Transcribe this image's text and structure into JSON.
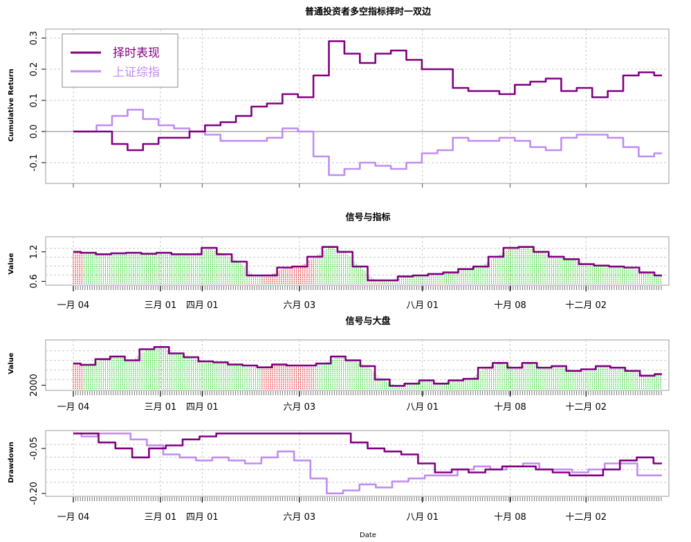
{
  "chart_data": [
    {
      "type": "line",
      "title": "普通投资者多空指标择时一双边",
      "ylabel": "Cumulative Return",
      "ylim": [
        -0.16,
        0.32
      ],
      "yticks": [
        "0.3",
        "0.2",
        "0.1",
        "0.0",
        "-0.1"
      ],
      "ytick_values": [
        0.3,
        0.2,
        0.1,
        0.0,
        -0.1
      ],
      "grid": true,
      "legend": "top-left",
      "series": [
        {
          "name": "择时表现",
          "color": "#800080",
          "values": [
            0.0,
            0.0,
            0.0,
            -0.04,
            -0.06,
            -0.04,
            -0.02,
            -0.02,
            0.0,
            0.02,
            0.03,
            0.05,
            0.08,
            0.09,
            0.12,
            0.11,
            0.18,
            0.29,
            0.25,
            0.22,
            0.25,
            0.26,
            0.23,
            0.2,
            0.2,
            0.14,
            0.13,
            0.13,
            0.12,
            0.15,
            0.16,
            0.17,
            0.13,
            0.14,
            0.11,
            0.13,
            0.18,
            0.19,
            0.18
          ]
        },
        {
          "name": "上证综指",
          "color": "#C08CF0",
          "values": [
            0.0,
            0.0,
            0.02,
            0.05,
            0.07,
            0.04,
            0.02,
            0.01,
            0.0,
            -0.01,
            -0.03,
            -0.03,
            -0.03,
            -0.02,
            0.01,
            0.0,
            -0.08,
            -0.14,
            -0.12,
            -0.1,
            -0.11,
            -0.12,
            -0.1,
            -0.07,
            -0.06,
            -0.02,
            -0.03,
            -0.03,
            -0.02,
            -0.03,
            -0.05,
            -0.06,
            -0.02,
            -0.01,
            -0.01,
            -0.02,
            -0.05,
            -0.08,
            -0.07
          ]
        }
      ]
    },
    {
      "type": "line",
      "title": "信号与指标",
      "ylabel": "Value",
      "ylim": [
        0.55,
        1.45
      ],
      "yticks": [
        "1.2",
        "0.6"
      ],
      "ytick_values": [
        1.2,
        0.6
      ],
      "grid": true,
      "signal_colors": {
        "short": "#E8000B",
        "long": "#00CC00"
      },
      "signal_ranges": [
        {
          "signal": "short",
          "from": 0,
          "to": 0.018
        },
        {
          "signal": "long",
          "from": 0.018,
          "to": 0.32
        },
        {
          "signal": "short",
          "from": 0.32,
          "to": 0.41
        },
        {
          "signal": "long",
          "from": 0.41,
          "to": 1.0
        }
      ],
      "values": [
        1.2,
        1.18,
        1.15,
        1.17,
        1.18,
        1.16,
        1.18,
        1.15,
        1.15,
        1.28,
        1.15,
        1.0,
        0.72,
        0.72,
        0.88,
        0.9,
        1.1,
        1.3,
        1.2,
        0.9,
        0.62,
        0.62,
        0.7,
        0.72,
        0.75,
        0.78,
        0.85,
        0.9,
        1.1,
        1.28,
        1.3,
        1.2,
        1.1,
        1.05,
        0.95,
        0.92,
        0.9,
        0.88,
        0.78,
        0.72
      ]
    },
    {
      "type": "line",
      "title": "信号与大盘",
      "ylabel": "Value",
      "ylim": [
        1880,
        3380
      ],
      "yticks": [
        "2000"
      ],
      "ytick_values": [
        2000
      ],
      "grid": true,
      "signal_colors": {
        "short": "#E8000B",
        "long": "#00CC00"
      },
      "signal_ranges": [
        {
          "signal": "short",
          "from": 0,
          "to": 0.018
        },
        {
          "signal": "long",
          "from": 0.018,
          "to": 0.32
        },
        {
          "signal": "short",
          "from": 0.32,
          "to": 0.41
        },
        {
          "signal": "long",
          "from": 0.41,
          "to": 1.0
        }
      ],
      "values": [
        2680,
        2640,
        2820,
        2900,
        2780,
        3130,
        3200,
        3000,
        2880,
        2750,
        2720,
        2650,
        2620,
        2560,
        2650,
        2620,
        2620,
        2680,
        2900,
        2780,
        2600,
        2180,
        1980,
        2050,
        2150,
        2050,
        2150,
        2200,
        2550,
        2700,
        2550,
        2700,
        2550,
        2600,
        2450,
        2500,
        2600,
        2550,
        2450,
        2300,
        2350
      ]
    },
    {
      "type": "line",
      "xlabel": "Date",
      "ylabel": "Drawdown",
      "ylim": [
        -0.205,
        0.005
      ],
      "yticks": [
        "-0.05",
        "-0.20"
      ],
      "ytick_values": [
        -0.05,
        -0.2
      ],
      "grid": true,
      "series": [
        {
          "name": "择时表现",
          "color": "#800080",
          "values": [
            0.0,
            0.0,
            -0.03,
            -0.05,
            -0.08,
            -0.05,
            -0.04,
            -0.02,
            -0.01,
            0.0,
            0.0,
            0.0,
            0.0,
            0.0,
            0.0,
            0.0,
            0.0,
            -0.03,
            -0.05,
            -0.06,
            -0.07,
            -0.1,
            -0.13,
            -0.12,
            -0.13,
            -0.12,
            -0.11,
            -0.11,
            -0.12,
            -0.13,
            -0.14,
            -0.14,
            -0.12,
            -0.09,
            -0.08,
            -0.1
          ]
        },
        {
          "name": "上证综指",
          "color": "#C08CF0",
          "values": [
            0.0,
            -0.01,
            0.0,
            0.0,
            -0.02,
            -0.04,
            -0.07,
            -0.08,
            -0.09,
            -0.08,
            -0.09,
            -0.1,
            -0.08,
            -0.06,
            -0.09,
            -0.15,
            -0.2,
            -0.19,
            -0.17,
            -0.18,
            -0.16,
            -0.15,
            -0.14,
            -0.14,
            -0.12,
            -0.11,
            -0.12,
            -0.11,
            -0.1,
            -0.12,
            -0.12,
            -0.13,
            -0.12,
            -0.1,
            -0.1,
            -0.14,
            -0.14
          ]
        }
      ]
    }
  ],
  "xticks": [
    "一月 04",
    "三月 01",
    "四月 01",
    "六月 03",
    "八月 01",
    "十月 08",
    "十二月 02"
  ],
  "xtick_fracs": [
    0.0,
    0.148,
    0.219,
    0.384,
    0.593,
    0.742,
    0.871
  ]
}
